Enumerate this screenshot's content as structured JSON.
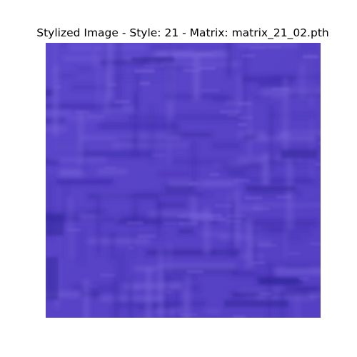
{
  "figure": {
    "title": "Stylized Image - Style: 21 - Matrix: matrix_21_02.pth"
  },
  "image": {
    "description_colors": {
      "base": "#5a45c8",
      "dark": "#3a2aa8",
      "light": "#7a66dc",
      "deep": "#2e1f95"
    }
  }
}
